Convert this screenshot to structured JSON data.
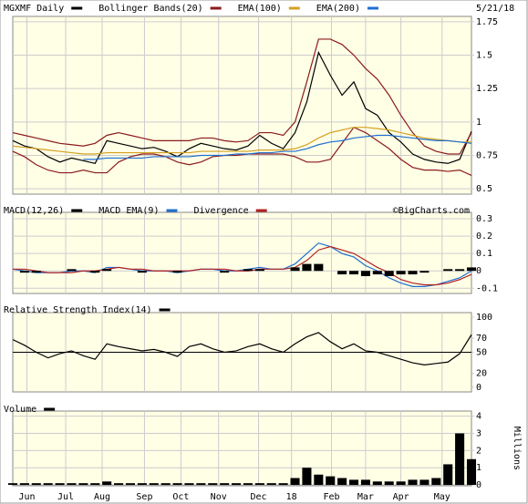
{
  "date": "5/21/18",
  "chart_data": [
    {
      "type": "line",
      "ylim": [
        0.46,
        1.79
      ],
      "yticks": [
        0.5,
        0.75,
        1.0,
        1.25,
        1.5,
        1.75
      ],
      "grid": true,
      "series": [
        {
          "name": "MGXMF Daily",
          "color": "#000000",
          "values": [
            0.86,
            0.82,
            0.8,
            0.74,
            0.7,
            0.73,
            0.71,
            0.69,
            0.86,
            0.84,
            0.82,
            0.8,
            0.81,
            0.78,
            0.74,
            0.8,
            0.84,
            0.82,
            0.8,
            0.79,
            0.82,
            0.9,
            0.84,
            0.8,
            0.92,
            1.15,
            1.52,
            1.35,
            1.2,
            1.3,
            1.1,
            1.05,
            0.92,
            0.85,
            0.76,
            0.72,
            0.7,
            0.69,
            0.72,
            0.93
          ]
        },
        {
          "name": "Bollinger Bands(20)",
          "color": "#8b1a1a",
          "values": [
            0.92,
            0.9,
            0.88,
            0.86,
            0.84,
            0.83,
            0.82,
            0.84,
            0.9,
            0.92,
            0.9,
            0.88,
            0.86,
            0.86,
            0.86,
            0.86,
            0.88,
            0.88,
            0.86,
            0.85,
            0.86,
            0.92,
            0.92,
            0.9,
            1.0,
            1.3,
            1.62,
            1.62,
            1.58,
            1.5,
            1.4,
            1.32,
            1.2,
            1.05,
            0.92,
            0.82,
            0.78,
            0.76,
            0.76,
            0.92
          ],
          "lower": [
            0.78,
            0.74,
            0.68,
            0.64,
            0.62,
            0.62,
            0.64,
            0.62,
            0.62,
            0.7,
            0.74,
            0.76,
            0.76,
            0.74,
            0.7,
            0.68,
            0.7,
            0.74,
            0.75,
            0.75,
            0.76,
            0.76,
            0.76,
            0.76,
            0.74,
            0.7,
            0.7,
            0.72,
            0.84,
            0.96,
            0.92,
            0.86,
            0.8,
            0.72,
            0.66,
            0.64,
            0.64,
            0.63,
            0.64,
            0.6
          ]
        },
        {
          "name": "EMA(100)",
          "color": "#d4a020",
          "values": [
            0.82,
            0.81,
            0.8,
            0.79,
            0.78,
            0.77,
            0.76,
            0.76,
            0.77,
            0.77,
            0.77,
            0.77,
            0.77,
            0.77,
            0.77,
            0.77,
            0.78,
            0.78,
            0.78,
            0.78,
            0.78,
            0.79,
            0.79,
            0.79,
            0.8,
            0.83,
            0.88,
            0.92,
            0.94,
            0.96,
            0.96,
            0.95,
            0.94,
            0.92,
            0.9,
            0.88,
            0.87,
            0.86,
            0.85,
            0.85
          ]
        },
        {
          "name": "EMA(200)",
          "color": "#1f6fd0",
          "values": [
            null,
            null,
            null,
            null,
            null,
            null,
            0.72,
            0.72,
            0.73,
            0.73,
            0.73,
            0.73,
            0.74,
            0.74,
            0.74,
            0.74,
            0.75,
            0.75,
            0.75,
            0.76,
            0.76,
            0.77,
            0.77,
            0.78,
            0.78,
            0.8,
            0.83,
            0.85,
            0.86,
            0.88,
            0.89,
            0.9,
            0.9,
            0.89,
            0.88,
            0.87,
            0.86,
            0.86,
            0.85,
            0.84
          ]
        }
      ]
    },
    {
      "type": "line",
      "annotation": "©BigCharts.com",
      "ylim": [
        -0.13,
        0.337
      ],
      "yticks": [
        -0.1,
        0.0,
        0.1,
        0.2,
        0.3
      ],
      "grid": true,
      "series": [
        {
          "name": "MACD(12,26)",
          "color": "#000000",
          "values": [
            0.01,
            0.0,
            -0.01,
            -0.01,
            -0.01,
            0.0,
            0.0,
            -0.01,
            0.02,
            0.02,
            0.01,
            0.0,
            0.0,
            0.0,
            -0.01,
            0.0,
            0.01,
            0.01,
            0.0,
            0.0,
            0.01,
            0.02,
            0.01,
            0.01,
            0.04,
            0.1,
            0.16,
            0.14,
            0.1,
            0.08,
            0.03,
            0.0,
            -0.04,
            -0.07,
            -0.09,
            -0.09,
            -0.08,
            -0.06,
            -0.04,
            0.0
          ],
          "line_color": "#1f6fd0"
        },
        {
          "name": "MACD EMA(9)",
          "color": "#1f6fd0",
          "values": [
            0.01,
            0.01,
            0.0,
            -0.01,
            -0.01,
            -0.01,
            0.0,
            0.0,
            0.01,
            0.02,
            0.01,
            0.01,
            0.0,
            0.0,
            0.0,
            0.0,
            0.01,
            0.01,
            0.01,
            0.0,
            0.0,
            0.01,
            0.01,
            0.01,
            0.02,
            0.06,
            0.12,
            0.14,
            0.12,
            0.1,
            0.06,
            0.02,
            -0.01,
            -0.05,
            -0.07,
            -0.08,
            -0.08,
            -0.07,
            -0.05,
            -0.02
          ],
          "line_color": "#b22222"
        },
        {
          "name": "Divergence",
          "color": "#b22222",
          "style": "bars",
          "values": [
            0.0,
            -0.01,
            -0.01,
            0.0,
            0.0,
            0.01,
            0.0,
            -0.01,
            0.01,
            0.0,
            0.0,
            -0.01,
            0.0,
            0.0,
            -0.01,
            0.0,
            0.0,
            0.0,
            -0.01,
            0.0,
            0.01,
            0.01,
            0.0,
            0.0,
            0.02,
            0.04,
            0.04,
            0.0,
            -0.02,
            -0.02,
            -0.03,
            -0.02,
            -0.03,
            -0.02,
            -0.02,
            -0.01,
            0.0,
            0.01,
            0.01,
            0.02
          ],
          "line_color": "#000000"
        }
      ]
    },
    {
      "type": "line",
      "ylim": [
        -6.5,
        106.5
      ],
      "yticks": [
        0,
        20,
        50,
        70,
        100
      ],
      "midline": 50,
      "series": [
        {
          "name": "Relative Strength Index(14)",
          "color": "#000000",
          "values": [
            68,
            60,
            50,
            42,
            48,
            52,
            45,
            40,
            62,
            58,
            55,
            52,
            54,
            50,
            44,
            58,
            62,
            55,
            50,
            52,
            58,
            62,
            55,
            50,
            62,
            72,
            78,
            65,
            55,
            62,
            52,
            50,
            45,
            40,
            35,
            32,
            34,
            36,
            48,
            75
          ]
        }
      ]
    },
    {
      "type": "bar",
      "ylabel": "Millions",
      "ylim": [
        -0.05,
        4.3
      ],
      "yticks": [
        0,
        1,
        2,
        3,
        4
      ],
      "grid": true,
      "xlim": [
        0,
        39
      ],
      "xticks": [
        {
          "value": 1.2,
          "label": "Jun"
        },
        {
          "value": 4.5,
          "label": "Jul"
        },
        {
          "value": 7.6,
          "label": "Aug"
        },
        {
          "value": 11.2,
          "label": "Sep"
        },
        {
          "value": 14.3,
          "label": "Oct"
        },
        {
          "value": 17.5,
          "label": "Nov"
        },
        {
          "value": 20.9,
          "label": "Dec"
        },
        {
          "value": 23.7,
          "label": "18"
        },
        {
          "value": 27.1,
          "label": "Feb"
        },
        {
          "value": 30,
          "label": "Mar"
        },
        {
          "value": 33,
          "label": "Apr"
        },
        {
          "value": 36.5,
          "label": "May"
        }
      ],
      "series": [
        {
          "name": "Volume",
          "color": "#000000",
          "values": [
            0.1,
            0.1,
            0.1,
            0.1,
            0.1,
            0.1,
            0.1,
            0.1,
            0.2,
            0.1,
            0.1,
            0.1,
            0.1,
            0.1,
            0.1,
            0.1,
            0.1,
            0.1,
            0.1,
            0.1,
            0.1,
            0.1,
            0.1,
            0.1,
            0.4,
            1.0,
            0.6,
            0.5,
            0.4,
            0.3,
            0.3,
            0.2,
            0.2,
            0.2,
            0.3,
            0.3,
            0.4,
            1.2,
            3.0,
            1.5
          ]
        }
      ]
    }
  ]
}
